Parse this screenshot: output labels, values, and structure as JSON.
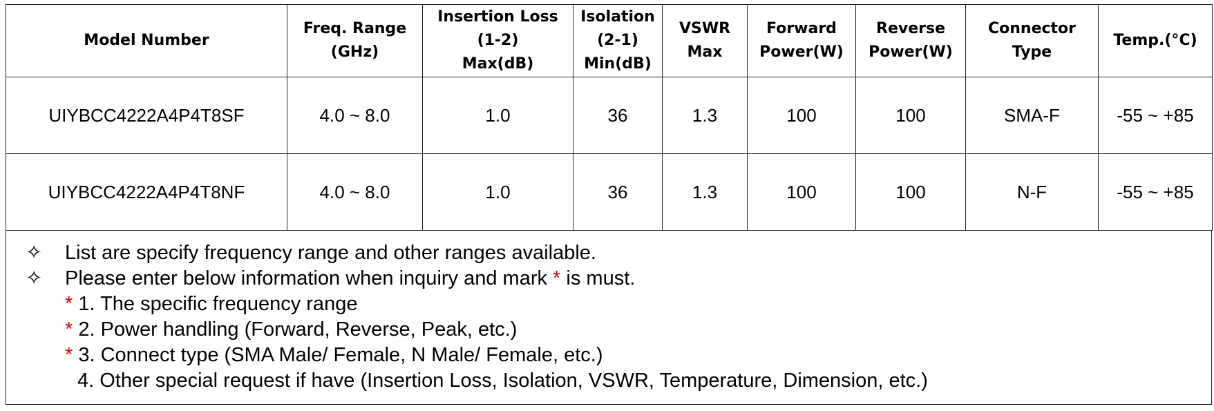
{
  "table": {
    "headers": [
      [
        "Model Number"
      ],
      [
        "Freq. Range",
        "(GHz)"
      ],
      [
        "Insertion Loss",
        "(1-2)",
        "Max(dB)"
      ],
      [
        "Isolation",
        "(2-1)",
        "Min(dB)"
      ],
      [
        "VSWR",
        "Max"
      ],
      [
        "Forward",
        "Power(W)"
      ],
      [
        "Reverse",
        "Power(W)"
      ],
      [
        "Connector",
        "Type"
      ],
      [
        "Temp.(°C)"
      ]
    ],
    "rows": [
      [
        "UIYBCC4222A4P4T8SF",
        "4.0 ~ 8.0",
        "1.0",
        "36",
        "1.3",
        "100",
        "100",
        "SMA-F",
        "-55 ~ +85"
      ],
      [
        "UIYBCC4222A4P4T8NF",
        "4.0 ~ 8.0",
        "1.0",
        "36",
        "1.3",
        "100",
        "100",
        "N-F",
        "-55 ~ +85"
      ]
    ]
  },
  "notes": {
    "bullets": [
      {
        "symbol": "✧",
        "text": "List are specify frequency range and other ranges available."
      },
      {
        "symbol": "✧",
        "before": "Please enter below information when inquiry and mark",
        "mark": "*",
        "after": "is must."
      }
    ],
    "items": [
      {
        "mark": "*",
        "text": "1. The specific frequency range"
      },
      {
        "mark": "*",
        "text": "2. Power handling (Forward, Reverse, Peak, etc.)"
      },
      {
        "mark": "*",
        "text": "3. Connect type (SMA Male/ Female, N Male/ Female, etc.)"
      },
      {
        "text": "4. Other special request if have (Insertion Loss, Isolation, VSWR, Temperature, Dimension, etc.)"
      }
    ]
  }
}
